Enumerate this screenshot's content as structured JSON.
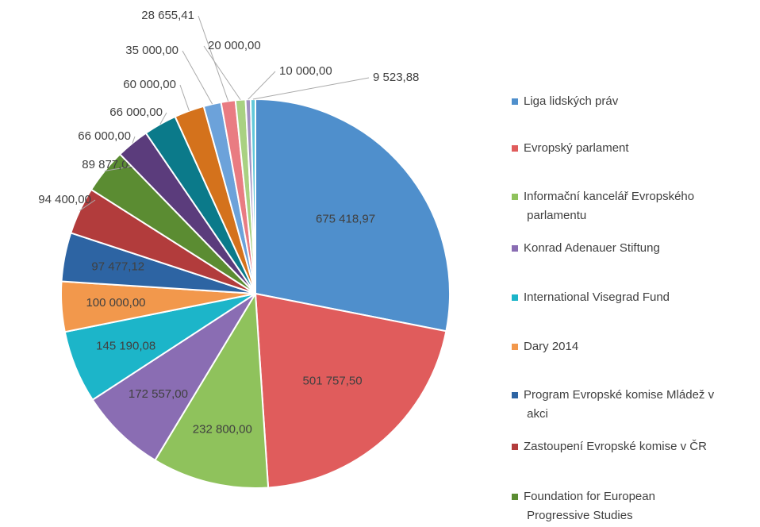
{
  "chart_data": {
    "type": "pie",
    "categories": [
      "Liga lidských práv",
      "Evropský parlament",
      "Informační kancelář Evropského parlamentu",
      "Konrad Adenauer Stiftung",
      "International Visegrad Fund",
      "Dary 2014",
      "Program Evropské komise Mládež v akci",
      "Zastoupení Evropské komise v ČR",
      "Foundation for European Progressive Studies",
      null,
      null,
      null,
      null,
      null,
      null,
      null,
      null
    ],
    "values": [
      675418.97,
      501757.5,
      232800.0,
      172557.0,
      145190.08,
      100000.0,
      97477.12,
      94400.0,
      89877.01,
      66000.0,
      66000.0,
      60000.0,
      35000.0,
      28655.41,
      20000.0,
      10000.0,
      9523.88
    ],
    "value_labels": [
      "675 418,97",
      "501 757,50",
      "232 800,00",
      "172 557,00",
      "145 190,08",
      "100 000,00",
      "97 477,12",
      "94 400,00",
      "89 877,01",
      "66 000,00",
      "66 000,00",
      "60 000,00",
      "35 000,00",
      "28 655,41",
      "20 000,00",
      "10 000,00",
      "9 523,88"
    ],
    "colors": [
      "#4f8fcc",
      "#e05c5c",
      "#8fc25c",
      "#8a6db3",
      "#1cb5c9",
      "#f2984c",
      "#2d64a3",
      "#b23c3c",
      "#5b8c32",
      "#5b3c7c",
      "#0b7a8a",
      "#d4721c",
      "#6ca2da",
      "#e97c82",
      "#a9d182",
      "#a292c2",
      "#62c9d9"
    ]
  }
}
